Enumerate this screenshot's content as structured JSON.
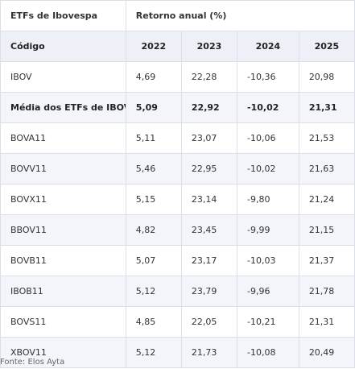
{
  "header": {
    "group_title": "ETFs de Ibovespa",
    "span_title": "Retorno anual (%)",
    "code_label": "Código",
    "years": [
      "2022",
      "2023",
      "2024",
      "2025"
    ]
  },
  "rows": [
    {
      "code": "IBOV",
      "values": [
        "4,69",
        "22,28",
        "-10,36",
        "20,98"
      ]
    },
    {
      "code": "Média dos ETFs de IBOV",
      "values": [
        "5,09",
        "22,92",
        "-10,02",
        "21,31"
      ]
    },
    {
      "code": "BOVA11",
      "values": [
        "5,11",
        "23,07",
        "-10,06",
        "21,53"
      ]
    },
    {
      "code": "BOVV11",
      "values": [
        "5,46",
        "22,95",
        "-10,02",
        "21,63"
      ]
    },
    {
      "code": "BOVX11",
      "values": [
        "5,15",
        "23,14",
        "-9,80",
        "21,24"
      ]
    },
    {
      "code": "BBOV11",
      "values": [
        "4,82",
        "23,45",
        "-9,99",
        "21,15"
      ]
    },
    {
      "code": "BOVB11",
      "values": [
        "5,07",
        "23,17",
        "-10,03",
        "21,37"
      ]
    },
    {
      "code": "IBOB11",
      "values": [
        "5,12",
        "23,79",
        "-9,96",
        "21,78"
      ]
    },
    {
      "code": "BOVS11",
      "values": [
        "4,85",
        "22,05",
        "-10,21",
        "21,31"
      ]
    },
    {
      "code": "XBOV11",
      "values": [
        "5,12",
        "21,73",
        "-10,08",
        "20,49"
      ]
    }
  ],
  "source": "Fonte: Elos Ayta"
}
